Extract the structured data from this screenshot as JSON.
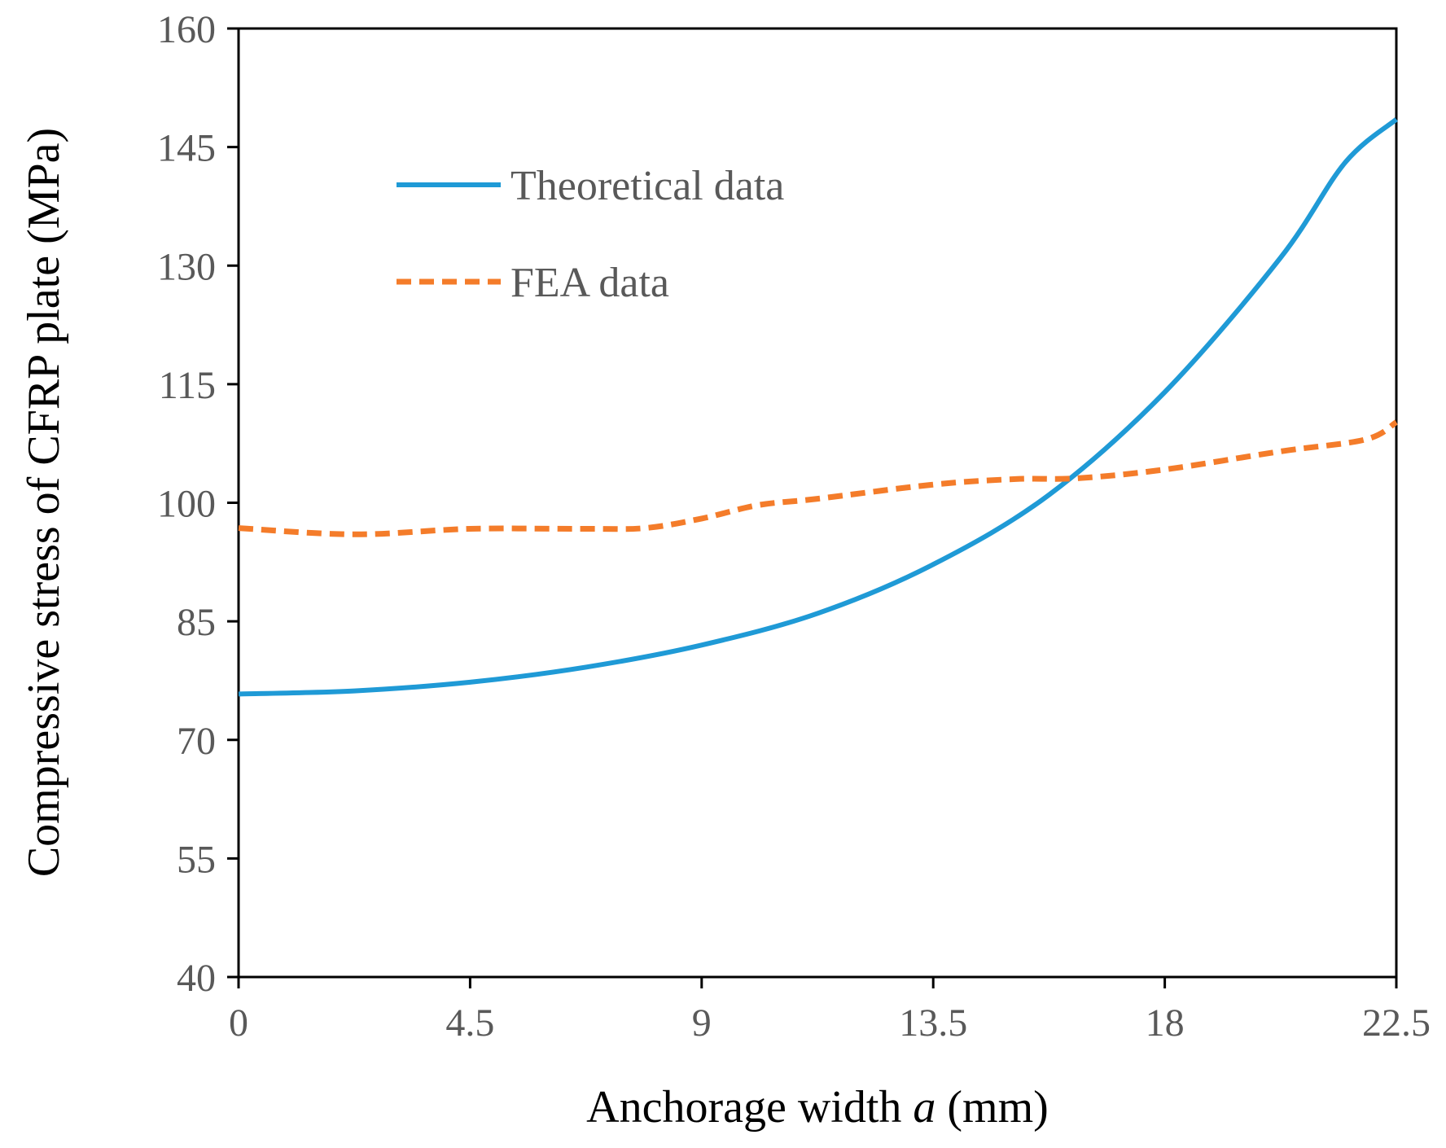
{
  "chart_data": {
    "type": "line",
    "title": "",
    "xlabel": "Anchorage width ",
    "xlabel_var": "a",
    "xlabel_unit": " (mm)",
    "ylabel": "Compressive stress of CFRP plate (MPa)",
    "xlim": [
      0,
      22.5
    ],
    "ylim": [
      40,
      160
    ],
    "xticks": [
      0,
      4.5,
      9,
      13.5,
      18,
      22.5
    ],
    "xtick_labels": [
      "0",
      "4.5",
      "9",
      "13.5",
      "18",
      "22.5"
    ],
    "yticks": [
      40,
      55,
      70,
      85,
      100,
      115,
      130,
      145,
      160
    ],
    "ytick_labels": [
      "40",
      "55",
      "70",
      "85",
      "100",
      "115",
      "130",
      "145",
      "160"
    ],
    "grid": false,
    "legend_position": "top-left",
    "series": [
      {
        "name": "Theoretical data",
        "color": "#1F9AD6",
        "style": "solid",
        "x": [
          0,
          2.25,
          4.5,
          6.75,
          9,
          11.25,
          13.5,
          15.75,
          18,
          20.25,
          21.5,
          22.5
        ],
        "y": [
          75.8,
          76.2,
          77.3,
          79.2,
          82.0,
          86.0,
          92.2,
          101.0,
          114.0,
          131.0,
          143.0,
          148.5
        ]
      },
      {
        "name": "FEA data",
        "color": "#F47C2A",
        "style": "dashed",
        "x": [
          0,
          2.25,
          4.5,
          6.75,
          7.9,
          9,
          10.1,
          11.25,
          13.5,
          15.1,
          16.3,
          18,
          20.25,
          21.9,
          22.5
        ],
        "y": [
          96.8,
          96.0,
          96.7,
          96.7,
          96.8,
          98.0,
          99.7,
          100.5,
          102.3,
          103.0,
          103.1,
          104.2,
          106.5,
          108.0,
          110.2
        ]
      }
    ]
  }
}
